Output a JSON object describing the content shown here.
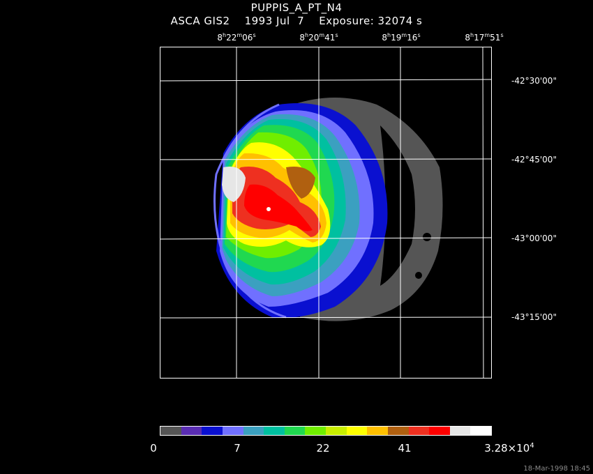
{
  "header": {
    "object_name": "PUPPIS_A_PT_N4",
    "instrument": "ASCA GIS2",
    "date": "1993 Jul  7",
    "exposure": "Exposure: 32074 s"
  },
  "axes": {
    "ra_ticks": [
      {
        "h": "8",
        "m": "22",
        "s": "06"
      },
      {
        "h": "8",
        "m": "20",
        "s": "41"
      },
      {
        "h": "8",
        "m": "19",
        "s": "16"
      },
      {
        "h": "8",
        "m": "17",
        "s": "51"
      }
    ],
    "dec_ticks": [
      "-42°30'00\"",
      "-42°45'00\"",
      "-43°00'00\"",
      "-43°15'00\""
    ]
  },
  "colorbar": {
    "colors": [
      "#555555",
      "#5a2db3",
      "#0a10d0",
      "#7070ff",
      "#3ba0c0",
      "#00c0a0",
      "#20d850",
      "#70ee00",
      "#c8ee00",
      "#ffff00",
      "#ffc000",
      "#b06010",
      "#ee3020",
      "#ff0000",
      "#e6e6e6",
      "#ffffff"
    ],
    "labels": [
      "0",
      "7",
      "22",
      "41"
    ],
    "max_label_base": "3.28×10",
    "max_label_exp": "4"
  },
  "footer": {
    "timestamp": "18-Mar-1998 18:45"
  }
}
